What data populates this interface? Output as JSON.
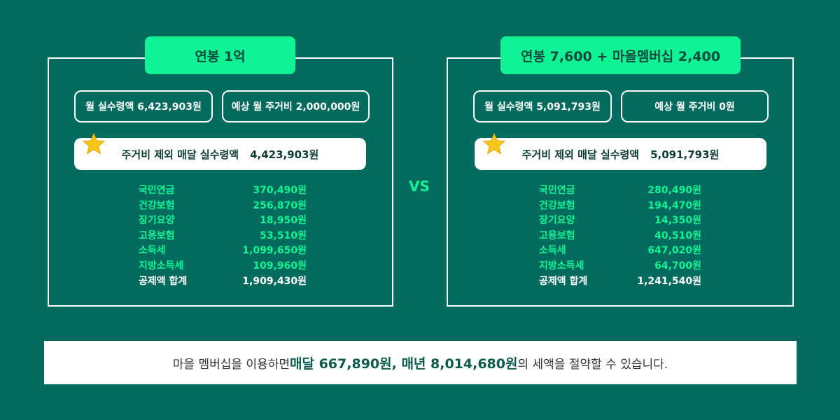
{
  "left": {
    "title": "연봉 1억",
    "net_monthly": "월 실수령액 6,423,903원",
    "housing_cost": "예상 월 주거비 2,000,000원",
    "after_housing_label": "주거비 제외 매달 실수령액",
    "after_housing_value": "4,423,903원",
    "deductions": [
      {
        "label": "국민연금",
        "value": "370,490원"
      },
      {
        "label": "건강보험",
        "value": "256,870원"
      },
      {
        "label": "장기요양",
        "value": "18,950원"
      },
      {
        "label": "고용보험",
        "value": "53,510원"
      },
      {
        "label": "소득세",
        "value": "1,099,650원"
      },
      {
        "label": "지방소득세",
        "value": "109,960원"
      }
    ],
    "total_label": "공제액 합계",
    "total_value": "1,909,430원"
  },
  "right": {
    "title": "연봉 7,600 + 마을멤버십 2,400",
    "net_monthly": "월 실수령액 5,091,793원",
    "housing_cost": "예상 월 주거비 0원",
    "after_housing_label": "주거비 제외 매달 실수령액",
    "after_housing_value": "5,091,793원",
    "deductions": [
      {
        "label": "국민연금",
        "value": "280,490원"
      },
      {
        "label": "건강보험",
        "value": "194,470원"
      },
      {
        "label": "장기요양",
        "value": "14,350원"
      },
      {
        "label": "고용보험",
        "value": "40,510원"
      },
      {
        "label": "소득세",
        "value": "647,020원"
      },
      {
        "label": "지방소득세",
        "value": "64,700원"
      }
    ],
    "total_label": "공제액 합계",
    "total_value": "1,241,540원"
  },
  "vs": "VS",
  "banner": {
    "prefix": "마을 멤버십을 이용하면 ",
    "highlight": "매달 667,890원, 매년 8,014,680원",
    "suffix": "의 세액을 절약할 수 있습니다."
  },
  "colors": {
    "background": "#036b5d",
    "accent": "#10f394",
    "star": "#f7c61a"
  },
  "icons": [
    "star-icon"
  ]
}
